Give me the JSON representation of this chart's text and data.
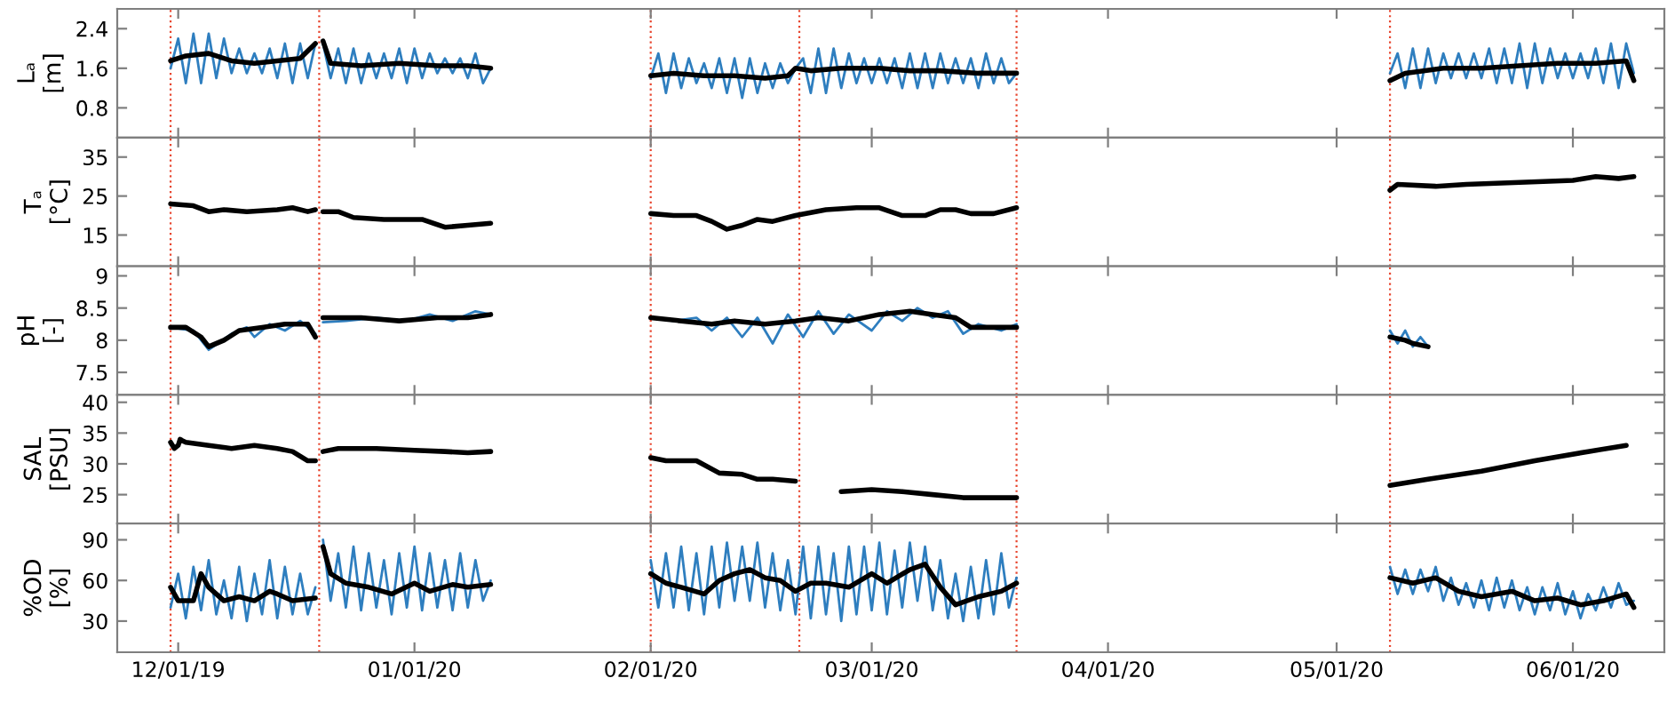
{
  "chart_data": [
    {
      "type": "line",
      "ylabel": "Lₐ\n[m]",
      "xlim": [
        "2019-11-23",
        "2020-06-13"
      ],
      "ylim": [
        0.2,
        2.8
      ],
      "yticks": [
        0.8,
        1.6,
        2.4
      ],
      "tick_labels": "y",
      "xticks": [
        {
          "value": "2019-12-01",
          "label": null
        },
        {
          "value": "2020-01-01",
          "label": null
        },
        {
          "value": "2020-02-01",
          "label": null
        },
        {
          "value": "2020-03-01",
          "label": null
        },
        {
          "value": "2020-04-01",
          "label": null
        },
        {
          "value": "2020-05-01",
          "label": null
        },
        {
          "value": "2020-06-01",
          "label": null
        }
      ],
      "ref_lines": [
        {
          "axis": "x",
          "value": "2019-11-30",
          "color": "#e8462f",
          "line_style": "dotted"
        },
        {
          "axis": "x",
          "value": "2019-12-19T12:00",
          "color": "#e8462f",
          "line_style": "dotted"
        },
        {
          "axis": "x",
          "value": "2020-02-01",
          "color": "#e8462f",
          "line_style": "dotted"
        },
        {
          "axis": "x",
          "value": "2020-02-20T12:00",
          "color": "#e8462f",
          "line_style": "dotted"
        },
        {
          "axis": "x",
          "value": "2020-03-20",
          "color": "#e8462f",
          "line_style": "dotted"
        },
        {
          "axis": "x",
          "value": "2020-05-08",
          "color": "#e8462f",
          "line_style": "dotted"
        }
      ],
      "series": [
        {
          "color": "#2e7ebf",
          "x": [
            "2019-11-30",
            "2019-12-01",
            "2019-12-02",
            "2019-12-03",
            "2019-12-04",
            "2019-12-05",
            "2019-12-06",
            "2019-12-07",
            "2019-12-08",
            "2019-12-09",
            "2019-12-10",
            "2019-12-11",
            "2019-12-12",
            "2019-12-13",
            "2019-12-14",
            "2019-12-15",
            "2019-12-16",
            "2019-12-17",
            "2019-12-18",
            "2019-12-19",
            "2019-12-19T12:00",
            "2019-12-20",
            "2019-12-21",
            "2019-12-22",
            "2019-12-23",
            "2019-12-24",
            "2019-12-25",
            "2019-12-26",
            "2019-12-27",
            "2019-12-28",
            "2019-12-29",
            "2019-12-30",
            "2019-12-31",
            "2020-01-01",
            "2020-01-02",
            "2020-01-03",
            "2020-01-04",
            "2020-01-05",
            "2020-01-06",
            "2020-01-07",
            "2020-01-08",
            "2020-01-09",
            "2020-01-10",
            "2020-01-11",
            "2020-01-20",
            "2020-02-01",
            "2020-02-02",
            "2020-02-03",
            "2020-02-04",
            "2020-02-05",
            "2020-02-06",
            "2020-02-07",
            "2020-02-08",
            "2020-02-09",
            "2020-02-10",
            "2020-02-11",
            "2020-02-12",
            "2020-02-13",
            "2020-02-14",
            "2020-02-15",
            "2020-02-16",
            "2020-02-17",
            "2020-02-18",
            "2020-02-19",
            "2020-02-20",
            "2020-02-21",
            "2020-02-22",
            "2020-02-23",
            "2020-02-24",
            "2020-02-25",
            "2020-02-26",
            "2020-02-27",
            "2020-02-28",
            "2020-02-29",
            "2020-03-01",
            "2020-03-02",
            "2020-03-03",
            "2020-03-04",
            "2020-03-05",
            "2020-03-06",
            "2020-03-07",
            "2020-03-08",
            "2020-03-09",
            "2020-03-10",
            "2020-03-11",
            "2020-03-12",
            "2020-03-13",
            "2020-03-14",
            "2020-03-15",
            "2020-03-16",
            "2020-03-17",
            "2020-03-18",
            "2020-03-19",
            "2020-03-20",
            "2020-04-01",
            "2020-05-08",
            "2020-05-09",
            "2020-05-10",
            "2020-05-11",
            "2020-05-12",
            "2020-05-13",
            "2020-05-14",
            "2020-05-15",
            "2020-05-16",
            "2020-05-17",
            "2020-05-18",
            "2020-05-19",
            "2020-05-20",
            "2020-05-21",
            "2020-05-22",
            "2020-05-23",
            "2020-05-24",
            "2020-05-25",
            "2020-05-26",
            "2020-05-27",
            "2020-05-28",
            "2020-05-29",
            "2020-05-30",
            "2020-05-31",
            "2020-06-01",
            "2020-06-02",
            "2020-06-03",
            "2020-06-04",
            "2020-06-05",
            "2020-06-06",
            "2020-06-07",
            "2020-06-08",
            "2020-06-09"
          ],
          "values": [
            1.6,
            2.2,
            1.3,
            2.3,
            1.3,
            2.3,
            1.4,
            2.2,
            1.5,
            2.0,
            1.5,
            1.9,
            1.5,
            2.0,
            1.4,
            2.1,
            1.3,
            2.1,
            1.4,
            2.1,
            null,
            2.1,
            1.4,
            2.0,
            1.3,
            2.0,
            1.3,
            1.9,
            1.4,
            1.9,
            1.4,
            2.0,
            1.3,
            2.0,
            1.4,
            1.9,
            1.5,
            1.8,
            1.5,
            1.8,
            1.4,
            1.9,
            1.3,
            1.6,
            null,
            1.4,
            1.9,
            1.1,
            1.9,
            1.2,
            1.8,
            1.3,
            1.7,
            1.2,
            1.8,
            1.1,
            1.8,
            1.0,
            1.8,
            1.1,
            1.7,
            1.2,
            1.7,
            1.3,
            1.6,
            1.8,
            1.1,
            2.0,
            1.1,
            2.0,
            1.2,
            1.9,
            1.3,
            1.8,
            1.3,
            1.8,
            1.3,
            1.8,
            1.2,
            1.9,
            1.2,
            1.9,
            1.2,
            1.9,
            1.3,
            1.8,
            1.3,
            1.8,
            1.2,
            1.9,
            1.3,
            1.8,
            1.3,
            1.5,
            null,
            1.5,
            1.9,
            1.2,
            2.0,
            1.2,
            2.0,
            1.3,
            1.9,
            1.4,
            1.9,
            1.4,
            1.9,
            1.4,
            2.0,
            1.3,
            2.0,
            1.3,
            2.1,
            1.2,
            2.1,
            1.3,
            2.0,
            1.4,
            1.9,
            1.4,
            1.9,
            1.4,
            2.0,
            1.3,
            2.1,
            1.2,
            2.1,
            1.5
          ]
        },
        {
          "color": "#000000",
          "x": [
            "2019-11-30",
            "2019-12-02",
            "2019-12-05",
            "2019-12-08",
            "2019-12-11",
            "2019-12-14",
            "2019-12-17",
            "2019-12-19",
            "2019-12-19T12:00",
            "2019-12-20",
            "2019-12-21",
            "2019-12-25",
            "2019-12-30",
            "2020-01-04",
            "2020-01-08",
            "2020-01-11",
            "2020-01-20",
            "2020-02-01",
            "2020-02-04",
            "2020-02-08",
            "2020-02-12",
            "2020-02-16",
            "2020-02-19",
            "2020-02-20",
            "2020-02-22",
            "2020-02-26",
            "2020-03-02",
            "2020-03-06",
            "2020-03-10",
            "2020-03-15",
            "2020-03-20",
            "2020-04-01",
            "2020-05-08",
            "2020-05-10",
            "2020-05-15",
            "2020-05-20",
            "2020-05-25",
            "2020-05-30",
            "2020-06-04",
            "2020-06-08",
            "2020-06-09"
          ],
          "values": [
            1.75,
            1.85,
            1.9,
            1.75,
            1.7,
            1.75,
            1.8,
            2.1,
            null,
            2.15,
            1.7,
            1.65,
            1.7,
            1.65,
            1.65,
            1.6,
            null,
            1.45,
            1.5,
            1.45,
            1.45,
            1.4,
            1.45,
            1.6,
            1.55,
            1.6,
            1.6,
            1.55,
            1.55,
            1.5,
            1.5,
            null,
            1.35,
            1.5,
            1.6,
            1.6,
            1.65,
            1.7,
            1.7,
            1.75,
            1.35
          ]
        }
      ]
    },
    {
      "type": "line",
      "ylabel": "Tₐ\n[°C]",
      "xlim": [
        "2019-11-23",
        "2020-06-13"
      ],
      "ylim": [
        7,
        40
      ],
      "yticks": [
        15,
        25,
        35
      ],
      "tick_labels": "y",
      "xticks": [
        {
          "value": "2019-12-01",
          "label": null
        },
        {
          "value": "2020-01-01",
          "label": null
        },
        {
          "value": "2020-02-01",
          "label": null
        },
        {
          "value": "2020-03-01",
          "label": null
        },
        {
          "value": "2020-04-01",
          "label": null
        },
        {
          "value": "2020-05-01",
          "label": null
        },
        {
          "value": "2020-06-01",
          "label": null
        }
      ],
      "ref_lines": [
        {
          "axis": "x",
          "value": "2019-11-30",
          "color": "#e8462f",
          "line_style": "dotted"
        },
        {
          "axis": "x",
          "value": "2019-12-19T12:00",
          "color": "#e8462f",
          "line_style": "dotted"
        },
        {
          "axis": "x",
          "value": "2020-02-01",
          "color": "#e8462f",
          "line_style": "dotted"
        },
        {
          "axis": "x",
          "value": "2020-02-20T12:00",
          "color": "#e8462f",
          "line_style": "dotted"
        },
        {
          "axis": "x",
          "value": "2020-03-20",
          "color": "#e8462f",
          "line_style": "dotted"
        },
        {
          "axis": "x",
          "value": "2020-05-08",
          "color": "#e8462f",
          "line_style": "dotted"
        }
      ],
      "series": [
        {
          "color": "#000000",
          "x": [
            "2019-11-30",
            "2019-12-03",
            "2019-12-05",
            "2019-12-07",
            "2019-12-10",
            "2019-12-14",
            "2019-12-16",
            "2019-12-18",
            "2019-12-19",
            "2019-12-19T12:00",
            "2019-12-20",
            "2019-12-22",
            "2019-12-24",
            "2019-12-28",
            "2020-01-02",
            "2020-01-05",
            "2020-01-08",
            "2020-01-11",
            "2020-01-20",
            "2020-02-01",
            "2020-02-04",
            "2020-02-07",
            "2020-02-09",
            "2020-02-11",
            "2020-02-13",
            "2020-02-15",
            "2020-02-17",
            "2020-02-20",
            "2020-02-24",
            "2020-02-28",
            "2020-03-02",
            "2020-03-05",
            "2020-03-08",
            "2020-03-10",
            "2020-03-12",
            "2020-03-14",
            "2020-03-17",
            "2020-03-20",
            "2020-04-01",
            "2020-05-08",
            "2020-05-09",
            "2020-05-14",
            "2020-05-18",
            "2020-05-25",
            "2020-06-01",
            "2020-06-04",
            "2020-06-07",
            "2020-06-09"
          ],
          "values": [
            23,
            22.5,
            21,
            21.5,
            21,
            21.5,
            22,
            21,
            21.5,
            null,
            21,
            21,
            19.5,
            19,
            19,
            17,
            17.5,
            18,
            null,
            20.5,
            20,
            20,
            18.5,
            16.5,
            17.5,
            19,
            18.5,
            20,
            21.5,
            22,
            22,
            20,
            20,
            21.5,
            21.5,
            20.5,
            20.5,
            22,
            null,
            26.5,
            28,
            27.5,
            28,
            28.5,
            29,
            30,
            29.5,
            30
          ]
        }
      ]
    },
    {
      "type": "line",
      "ylabel": "pH\n[-]",
      "xlim": [
        "2019-11-23",
        "2020-06-13"
      ],
      "ylim": [
        7.15,
        9.15
      ],
      "yticks": [
        7.5,
        8,
        8.5,
        9
      ],
      "tick_labels": "y",
      "xticks": [
        {
          "value": "2019-12-01",
          "label": null
        },
        {
          "value": "2020-01-01",
          "label": null
        },
        {
          "value": "2020-02-01",
          "label": null
        },
        {
          "value": "2020-03-01",
          "label": null
        },
        {
          "value": "2020-04-01",
          "label": null
        },
        {
          "value": "2020-05-01",
          "label": null
        },
        {
          "value": "2020-06-01",
          "label": null
        }
      ],
      "ref_lines": [
        {
          "axis": "x",
          "value": "2019-11-30",
          "color": "#e8462f",
          "line_style": "dotted"
        },
        {
          "axis": "x",
          "value": "2019-12-19T12:00",
          "color": "#e8462f",
          "line_style": "dotted"
        },
        {
          "axis": "x",
          "value": "2020-02-01",
          "color": "#e8462f",
          "line_style": "dotted"
        },
        {
          "axis": "x",
          "value": "2020-02-20T12:00",
          "color": "#e8462f",
          "line_style": "dotted"
        },
        {
          "axis": "x",
          "value": "2020-03-20",
          "color": "#e8462f",
          "line_style": "dotted"
        },
        {
          "axis": "x",
          "value": "2020-05-08",
          "color": "#e8462f",
          "line_style": "dotted"
        }
      ],
      "series": [
        {
          "color": "#2e7ebf",
          "x": [
            "2019-11-30",
            "2019-12-03",
            "2019-12-05",
            "2019-12-08",
            "2019-12-10",
            "2019-12-11",
            "2019-12-13",
            "2019-12-15",
            "2019-12-17",
            "2019-12-19",
            "2019-12-19T12:00",
            "2019-12-20",
            "2019-12-23",
            "2019-12-27",
            "2019-12-31",
            "2020-01-03",
            "2020-01-06",
            "2020-01-09",
            "2020-01-11",
            "2020-01-20",
            "2020-02-01",
            "2020-02-04",
            "2020-02-07",
            "2020-02-09",
            "2020-02-11",
            "2020-02-13",
            "2020-02-15",
            "2020-02-17",
            "2020-02-19",
            "2020-02-21",
            "2020-02-23",
            "2020-02-25",
            "2020-02-27",
            "2020-03-01",
            "2020-03-03",
            "2020-03-05",
            "2020-03-07",
            "2020-03-09",
            "2020-03-11",
            "2020-03-13",
            "2020-03-15",
            "2020-03-18",
            "2020-03-20",
            "2020-04-01",
            "2020-05-08",
            "2020-05-09",
            "2020-05-10",
            "2020-05-11",
            "2020-05-12",
            "2020-05-13"
          ],
          "values": [
            8.2,
            8.15,
            7.85,
            8.1,
            8.2,
            8.05,
            8.25,
            8.15,
            8.3,
            8.1,
            null,
            8.28,
            8.3,
            8.35,
            8.3,
            8.4,
            8.3,
            8.45,
            8.4,
            null,
            8.35,
            8.3,
            8.35,
            8.15,
            8.35,
            8.05,
            8.35,
            7.95,
            8.4,
            8.05,
            8.45,
            8.1,
            8.4,
            8.15,
            8.45,
            8.3,
            8.5,
            8.35,
            8.45,
            8.1,
            8.25,
            8.15,
            8.25,
            null,
            8.15,
            7.95,
            8.15,
            7.9,
            8.05,
            7.9
          ]
        },
        {
          "color": "#000000",
          "x": [
            "2019-11-30",
            "2019-12-02",
            "2019-12-04",
            "2019-12-05",
            "2019-12-07",
            "2019-12-09",
            "2019-12-12",
            "2019-12-15",
            "2019-12-18",
            "2019-12-19",
            "2019-12-19T12:00",
            "2019-12-20",
            "2019-12-25",
            "2019-12-30",
            "2020-01-04",
            "2020-01-08",
            "2020-01-11",
            "2020-01-20",
            "2020-02-01",
            "2020-02-05",
            "2020-02-09",
            "2020-02-12",
            "2020-02-16",
            "2020-02-20",
            "2020-02-23",
            "2020-02-27",
            "2020-03-02",
            "2020-03-06",
            "2020-03-09",
            "2020-03-12",
            "2020-03-14",
            "2020-03-17",
            "2020-03-20",
            "2020-04-01",
            "2020-05-08",
            "2020-05-10",
            "2020-05-11",
            "2020-05-13"
          ],
          "values": [
            8.2,
            8.2,
            8.05,
            7.9,
            8.0,
            8.15,
            8.2,
            8.25,
            8.25,
            8.05,
            null,
            8.35,
            8.35,
            8.3,
            8.35,
            8.35,
            8.4,
            null,
            8.35,
            8.3,
            8.25,
            8.3,
            8.25,
            8.3,
            8.35,
            8.3,
            8.4,
            8.45,
            8.4,
            8.35,
            8.2,
            8.2,
            8.2,
            null,
            8.05,
            8.0,
            7.95,
            7.9
          ]
        }
      ]
    },
    {
      "type": "line",
      "ylabel": "SAL\n[PSU]",
      "xlim": [
        "2019-11-23",
        "2020-06-13"
      ],
      "ylim": [
        20.3,
        41.2
      ],
      "yticks": [
        25,
        30,
        35,
        40
      ],
      "tick_labels": "y",
      "xticks": [
        {
          "value": "2019-12-01",
          "label": null
        },
        {
          "value": "2020-01-01",
          "label": null
        },
        {
          "value": "2020-02-01",
          "label": null
        },
        {
          "value": "2020-03-01",
          "label": null
        },
        {
          "value": "2020-04-01",
          "label": null
        },
        {
          "value": "2020-05-01",
          "label": null
        },
        {
          "value": "2020-06-01",
          "label": null
        }
      ],
      "ref_lines": [
        {
          "axis": "x",
          "value": "2019-11-30",
          "color": "#e8462f",
          "line_style": "dotted"
        },
        {
          "axis": "x",
          "value": "2019-12-19T12:00",
          "color": "#e8462f",
          "line_style": "dotted"
        },
        {
          "axis": "x",
          "value": "2020-02-01",
          "color": "#e8462f",
          "line_style": "dotted"
        },
        {
          "axis": "x",
          "value": "2020-02-20T12:00",
          "color": "#e8462f",
          "line_style": "dotted"
        },
        {
          "axis": "x",
          "value": "2020-03-20",
          "color": "#e8462f",
          "line_style": "dotted"
        },
        {
          "axis": "x",
          "value": "2020-05-08",
          "color": "#e8462f",
          "line_style": "dotted"
        }
      ],
      "series": [
        {
          "color": "#000000",
          "x": [
            "2019-11-30",
            "2019-11-30T12:00",
            "2019-12-01",
            "2019-12-01T06:00",
            "2019-12-01T12:00",
            "2019-12-02",
            "2019-12-05",
            "2019-12-08",
            "2019-12-11",
            "2019-12-14",
            "2019-12-16",
            "2019-12-18",
            "2019-12-19",
            "2019-12-19T12:00",
            "2019-12-20",
            "2019-12-22",
            "2019-12-27",
            "2020-01-01",
            "2020-01-05",
            "2020-01-08",
            "2020-01-11",
            "2020-01-20",
            "2020-02-01",
            "2020-02-03",
            "2020-02-07",
            "2020-02-10",
            "2020-02-13",
            "2020-02-15",
            "2020-02-17",
            "2020-02-20",
            "2020-02-24",
            "2020-02-26",
            "2020-03-01",
            "2020-03-05",
            "2020-03-09",
            "2020-03-13",
            "2020-03-17",
            "2020-03-20",
            "2020-04-01",
            "2020-05-08",
            "2020-05-13",
            "2020-05-20",
            "2020-05-27",
            "2020-06-03",
            "2020-06-08"
          ],
          "values": [
            33.5,
            32.5,
            33,
            34,
            33.8,
            33.5,
            33,
            32.5,
            33,
            32.5,
            32,
            30.5,
            30.5,
            null,
            32,
            32.5,
            32.5,
            32.2,
            32,
            31.8,
            32,
            null,
            31,
            30.5,
            30.5,
            28.5,
            28.3,
            27.5,
            27.5,
            27.2,
            null,
            25.5,
            25.8,
            25.5,
            25,
            24.5,
            24.5,
            24.5,
            null,
            26.5,
            27.5,
            28.8,
            30.5,
            32,
            33
          ]
        }
      ]
    },
    {
      "type": "line",
      "ylabel": "%OD\n[%]",
      "xlim": [
        "2019-11-23",
        "2020-06-13"
      ],
      "ylim": [
        7,
        102
      ],
      "yticks": [
        30,
        60,
        90
      ],
      "xticks": [
        {
          "value": "2019-12-01",
          "label": "12/01/19"
        },
        {
          "value": "2020-01-01",
          "label": "01/01/20"
        },
        {
          "value": "2020-02-01",
          "label": "02/01/20"
        },
        {
          "value": "2020-03-01",
          "label": "03/01/20"
        },
        {
          "value": "2020-04-01",
          "label": "04/01/20"
        },
        {
          "value": "2020-05-01",
          "label": "05/01/20"
        },
        {
          "value": "2020-06-01",
          "label": "06/01/20"
        }
      ],
      "ref_lines": [
        {
          "axis": "x",
          "value": "2019-11-30",
          "color": "#e8462f",
          "line_style": "dotted"
        },
        {
          "axis": "x",
          "value": "2019-12-19T12:00",
          "color": "#e8462f",
          "line_style": "dotted"
        },
        {
          "axis": "x",
          "value": "2020-02-01",
          "color": "#e8462f",
          "line_style": "dotted"
        },
        {
          "axis": "x",
          "value": "2020-02-20T12:00",
          "color": "#e8462f",
          "line_style": "dotted"
        },
        {
          "axis": "x",
          "value": "2020-03-20",
          "color": "#e8462f",
          "line_style": "dotted"
        },
        {
          "axis": "x",
          "value": "2020-05-08",
          "color": "#e8462f",
          "line_style": "dotted"
        }
      ],
      "series": [
        {
          "color": "#2e7ebf",
          "x": [
            "2019-11-30",
            "2019-12-01",
            "2019-12-02",
            "2019-12-03",
            "2019-12-04",
            "2019-12-05",
            "2019-12-06",
            "2019-12-07",
            "2019-12-08",
            "2019-12-09",
            "2019-12-10",
            "2019-12-11",
            "2019-12-12",
            "2019-12-13",
            "2019-12-14",
            "2019-12-15",
            "2019-12-16",
            "2019-12-17",
            "2019-12-18",
            "2019-12-19",
            "2019-12-19T12:00",
            "2019-12-20",
            "2019-12-21",
            "2019-12-22",
            "2019-12-23",
            "2019-12-24",
            "2019-12-25",
            "2019-12-26",
            "2019-12-27",
            "2019-12-28",
            "2019-12-29",
            "2019-12-30",
            "2019-12-31",
            "2020-01-01",
            "2020-01-02",
            "2020-01-03",
            "2020-01-04",
            "2020-01-05",
            "2020-01-06",
            "2020-01-07",
            "2020-01-08",
            "2020-01-09",
            "2020-01-10",
            "2020-01-11",
            "2020-01-20",
            "2020-02-01",
            "2020-02-02",
            "2020-02-03",
            "2020-02-04",
            "2020-02-05",
            "2020-02-06",
            "2020-02-07",
            "2020-02-08",
            "2020-02-09",
            "2020-02-10",
            "2020-02-11",
            "2020-02-12",
            "2020-02-13",
            "2020-02-14",
            "2020-02-15",
            "2020-02-16",
            "2020-02-17",
            "2020-02-18",
            "2020-02-19",
            "2020-02-20",
            "2020-02-21",
            "2020-02-22",
            "2020-02-23",
            "2020-02-24",
            "2020-02-25",
            "2020-02-26",
            "2020-02-27",
            "2020-02-28",
            "2020-02-29",
            "2020-03-01",
            "2020-03-02",
            "2020-03-03",
            "2020-03-04",
            "2020-03-05",
            "2020-03-06",
            "2020-03-07",
            "2020-03-08",
            "2020-03-09",
            "2020-03-10",
            "2020-03-11",
            "2020-03-12",
            "2020-03-13",
            "2020-03-14",
            "2020-03-15",
            "2020-03-16",
            "2020-03-17",
            "2020-03-18",
            "2020-03-19",
            "2020-03-20",
            "2020-04-01",
            "2020-05-08",
            "2020-05-09",
            "2020-05-10",
            "2020-05-11",
            "2020-05-12",
            "2020-05-13",
            "2020-05-14",
            "2020-05-15",
            "2020-05-16",
            "2020-05-17",
            "2020-05-18",
            "2020-05-19",
            "2020-05-20",
            "2020-05-21",
            "2020-05-22",
            "2020-05-23",
            "2020-05-24",
            "2020-05-25",
            "2020-05-26",
            "2020-05-27",
            "2020-05-28",
            "2020-05-29",
            "2020-05-30",
            "2020-05-31",
            "2020-06-01",
            "2020-06-02",
            "2020-06-03",
            "2020-06-04",
            "2020-06-05",
            "2020-06-06",
            "2020-06-07",
            "2020-06-08",
            "2020-06-09"
          ],
          "values": [
            40,
            65,
            32,
            70,
            38,
            75,
            35,
            60,
            32,
            70,
            30,
            65,
            35,
            75,
            32,
            70,
            35,
            65,
            35,
            55,
            null,
            90,
            45,
            80,
            40,
            85,
            38,
            80,
            40,
            75,
            35,
            80,
            40,
            85,
            38,
            80,
            40,
            75,
            38,
            80,
            40,
            75,
            45,
            60,
            null,
            75,
            40,
            80,
            40,
            85,
            38,
            80,
            35,
            85,
            40,
            88,
            45,
            85,
            45,
            88,
            40,
            80,
            38,
            75,
            35,
            85,
            32,
            85,
            35,
            80,
            30,
            85,
            35,
            85,
            38,
            88,
            35,
            82,
            40,
            88,
            45,
            85,
            38,
            75,
            32,
            65,
            30,
            70,
            32,
            75,
            35,
            80,
            40,
            62,
            null,
            70,
            50,
            68,
            50,
            68,
            52,
            70,
            45,
            62,
            42,
            58,
            40,
            60,
            38,
            62,
            40,
            60,
            38,
            55,
            35,
            55,
            38,
            58,
            35,
            52,
            32,
            50,
            38,
            55,
            40,
            58,
            42,
            45
          ]
        },
        {
          "color": "#000000",
          "x": [
            "2019-11-30",
            "2019-12-01",
            "2019-12-03",
            "2019-12-04",
            "2019-12-05",
            "2019-12-07",
            "2019-12-09",
            "2019-12-11",
            "2019-12-13",
            "2019-12-14",
            "2019-12-16",
            "2019-12-19",
            "2019-12-19T12:00",
            "2019-12-20",
            "2019-12-21",
            "2019-12-23",
            "2019-12-26",
            "2019-12-29",
            "2020-01-01",
            "2020-01-03",
            "2020-01-06",
            "2020-01-08",
            "2020-01-11",
            "2020-01-20",
            "2020-02-01",
            "2020-02-03",
            "2020-02-05",
            "2020-02-08",
            "2020-02-10",
            "2020-02-12",
            "2020-02-14",
            "2020-02-16",
            "2020-02-18",
            "2020-02-20",
            "2020-02-22",
            "2020-02-24",
            "2020-02-27",
            "2020-03-01",
            "2020-03-03",
            "2020-03-06",
            "2020-03-08",
            "2020-03-10",
            "2020-03-12",
            "2020-03-15",
            "2020-03-18",
            "2020-03-20",
            "2020-04-01",
            "2020-05-08",
            "2020-05-11",
            "2020-05-14",
            "2020-05-17",
            "2020-05-20",
            "2020-05-24",
            "2020-05-27",
            "2020-05-30",
            "2020-06-02",
            "2020-06-05",
            "2020-06-08",
            "2020-06-09"
          ],
          "values": [
            55,
            45,
            45,
            65,
            55,
            45,
            48,
            45,
            52,
            50,
            45,
            47,
            null,
            85,
            65,
            58,
            55,
            50,
            58,
            52,
            57,
            55,
            57,
            null,
            65,
            58,
            55,
            50,
            60,
            65,
            68,
            62,
            60,
            52,
            58,
            58,
            55,
            65,
            58,
            68,
            72,
            55,
            42,
            48,
            52,
            58,
            null,
            62,
            58,
            62,
            52,
            48,
            52,
            45,
            47,
            42,
            45,
            50,
            40
          ]
        }
      ]
    }
  ]
}
